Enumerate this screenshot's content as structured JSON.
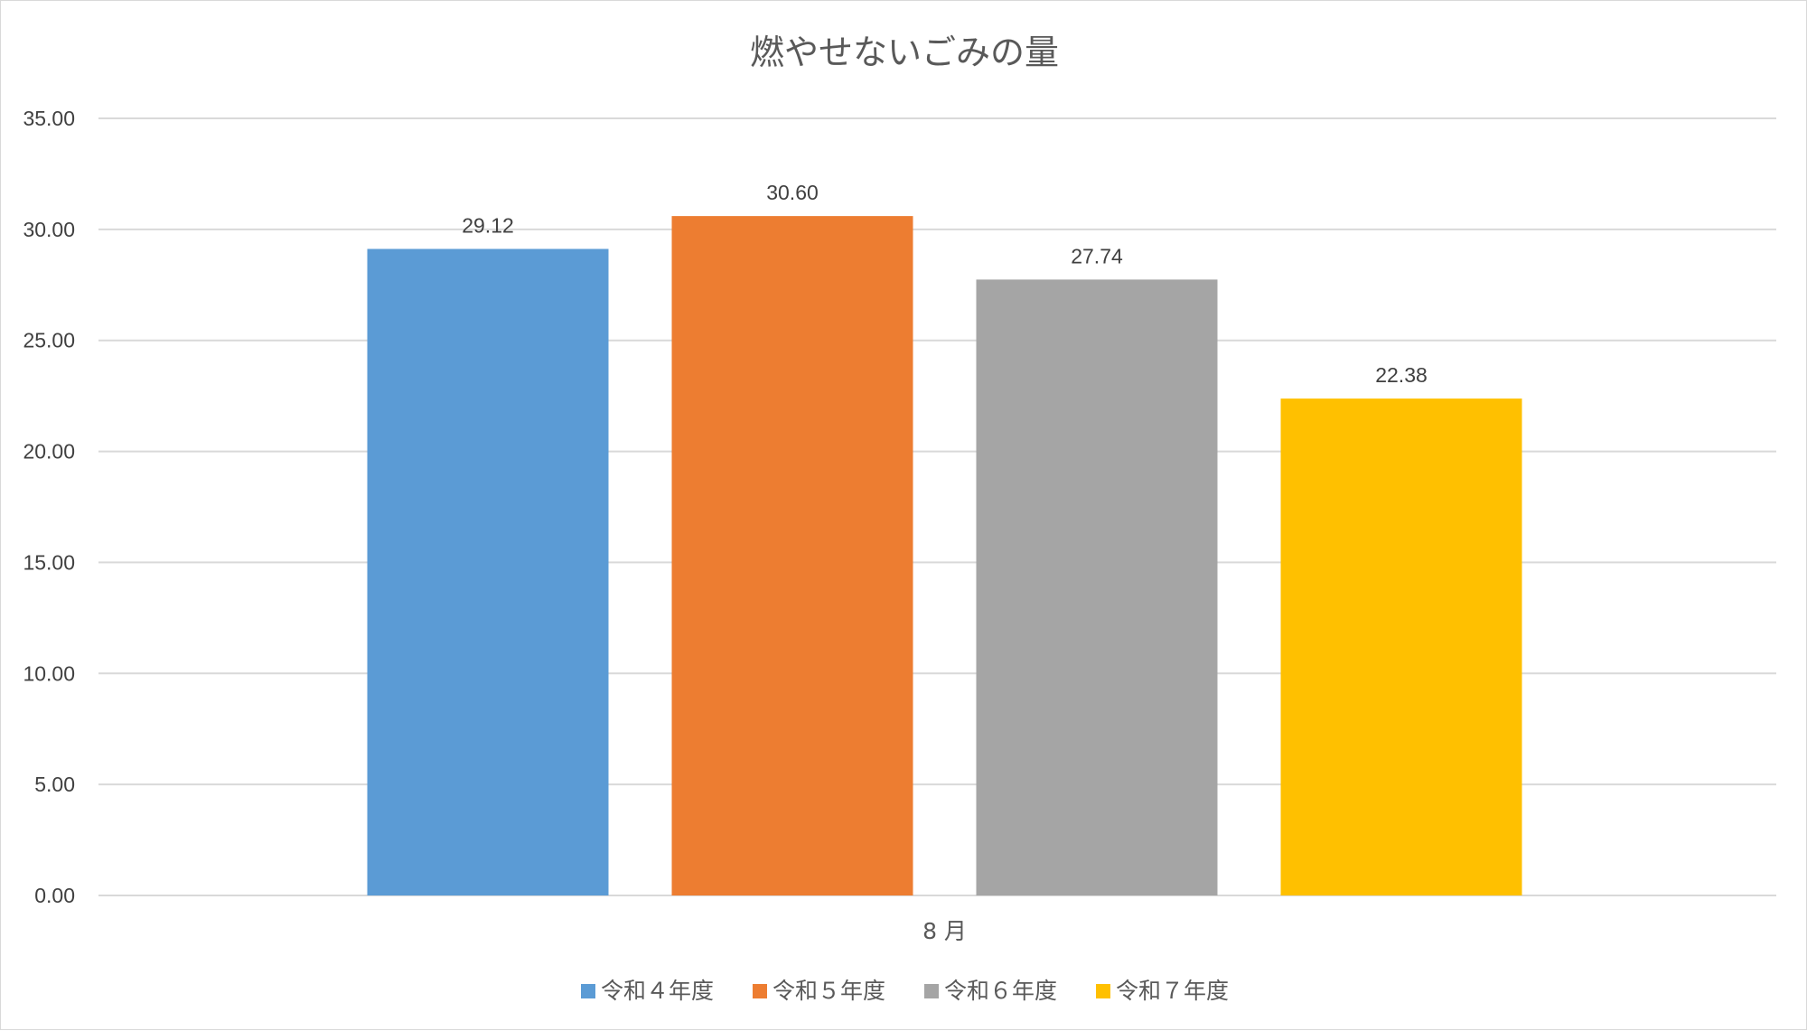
{
  "chart_data": {
    "type": "bar",
    "title": "燃やせないごみの量",
    "xlabel": "",
    "ylabel": "",
    "categories": [
      "8 月"
    ],
    "series": [
      {
        "name": "令和４年度",
        "values": [
          29.12
        ],
        "color": "#5b9bd5"
      },
      {
        "name": "令和５年度",
        "values": [
          30.6
        ],
        "color": "#ed7d31"
      },
      {
        "name": "令和６年度",
        "values": [
          27.74
        ],
        "color": "#a5a5a5"
      },
      {
        "name": "令和７年度",
        "values": [
          22.38
        ],
        "color": "#ffc000"
      }
    ],
    "ylim": [
      0,
      35
    ],
    "yticks": [
      "0.00",
      "5.00",
      "10.00",
      "15.00",
      "20.00",
      "25.00",
      "30.00",
      "35.00"
    ],
    "data_labels": [
      "29.12",
      "30.60",
      "27.74",
      "22.38"
    ],
    "grid": true,
    "legend_position": "bottom",
    "colors": {
      "gridline": "#d9d9d9",
      "text": "#595959"
    }
  }
}
